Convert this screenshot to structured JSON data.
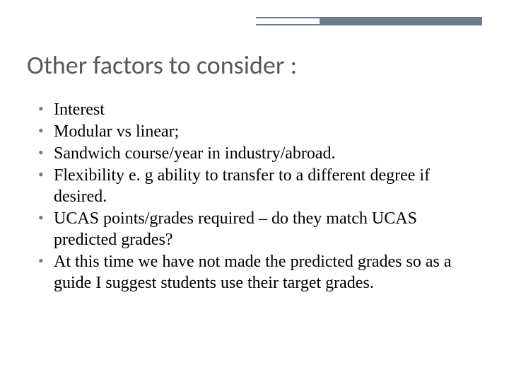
{
  "slide": {
    "title": "Other factors to consider :",
    "bullets": [
      "Interest",
      "Modular vs linear;",
      "Sandwich course/year in industry/abroad.",
      "Flexibility e. g ability to transfer to a different degree if desired.",
      "UCAS points/grades required – do they match UCAS predicted grades?",
      "At this time we have not made the predicted grades so as a guide I suggest students use their target grades."
    ]
  },
  "style": {
    "title_color": "#595959",
    "title_fontsize": 36,
    "body_fontsize": 24,
    "bullet_color": "#6a7c8f",
    "accent_color": "#6a7c8f",
    "background_color": "#ffffff",
    "title_font": "Calibri",
    "body_font": "Georgia"
  }
}
